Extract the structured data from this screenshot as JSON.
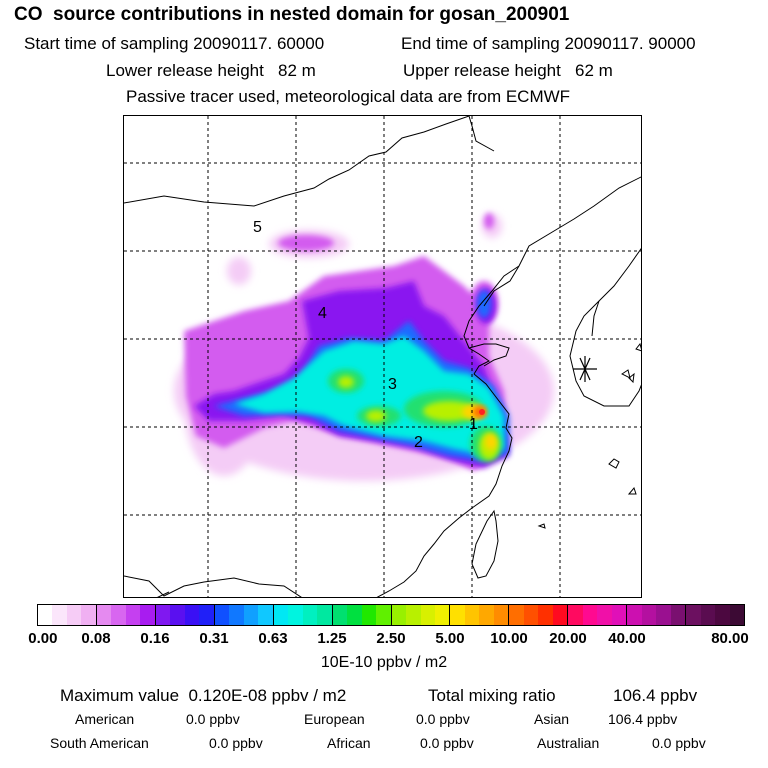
{
  "title": "CO  source contributions in nested domain for gosan_200901",
  "header": {
    "start_label": "Start time of sampling 20090117. 60000",
    "end_label": "End time of sampling 20090117. 90000",
    "lower_label": "Lower release height   82 m",
    "upper_label": "Upper release height   62 m",
    "tracer_note": "Passive tracer used, meteorological data are from ECMWF"
  },
  "map": {
    "source_labels": [
      "1",
      "2",
      "3",
      "4",
      "5"
    ],
    "receptor_marker": "asterisk-icon"
  },
  "colorbar": {
    "tick_labels": [
      "0.00",
      "0.08",
      "0.16",
      "0.31",
      "0.63",
      "1.25",
      "2.50",
      "5.00",
      "10.00",
      "20.00",
      "40.00",
      "80.00"
    ],
    "unit": "10E-10 ppbv / m2",
    "colors": [
      [
        "#ffffff",
        "#fbe6fb",
        "#f6ccf6",
        "#f0b0f2"
      ],
      [
        "#e58af0",
        "#d866f0",
        "#c540f0",
        "#a81cf0"
      ],
      [
        "#8018f0",
        "#5a10f0",
        "#3a10f5",
        "#2020f8"
      ],
      [
        "#1050ff",
        "#1078ff",
        "#10a0ff",
        "#10c8ff"
      ],
      [
        "#00e8f4",
        "#00f4e0",
        "#00f0c0",
        "#00e8a0"
      ],
      [
        "#00e070",
        "#00e040",
        "#20e800",
        "#60f000"
      ],
      [
        "#98f000",
        "#b8f000",
        "#d8f000",
        "#f0f000"
      ],
      [
        "#ffe000",
        "#ffc400",
        "#ffa800",
        "#ff8c00"
      ],
      [
        "#ff6e00",
        "#ff5000",
        "#ff3000",
        "#ff0a20"
      ],
      [
        "#ff0a60",
        "#ff0a90",
        "#f010a8",
        "#e010b8"
      ],
      [
        "#cc10b0",
        "#b410a0",
        "#9a1090",
        "#7a1070"
      ],
      [
        "#6c1060",
        "#5a0c50",
        "#4c0840",
        "#3c0a34"
      ]
    ]
  },
  "summary": {
    "max_label": "Maximum value  0.120E-08 ppbv / m2",
    "total_label": "Total mixing ratio",
    "total_value": "106.4 ppbv",
    "american_label": "American",
    "american_value": "0.0 ppbv",
    "european_label": "European",
    "european_value": "0.0 ppbv",
    "asian_label": "Asian",
    "asian_value": "106.4 ppbv",
    "south_american_label": "South American",
    "south_american_value": "0.0 ppbv",
    "african_label": "African",
    "african_value": "0.0 ppbv",
    "australian_label": "Australian",
    "australian_value": "0.0 ppbv"
  }
}
